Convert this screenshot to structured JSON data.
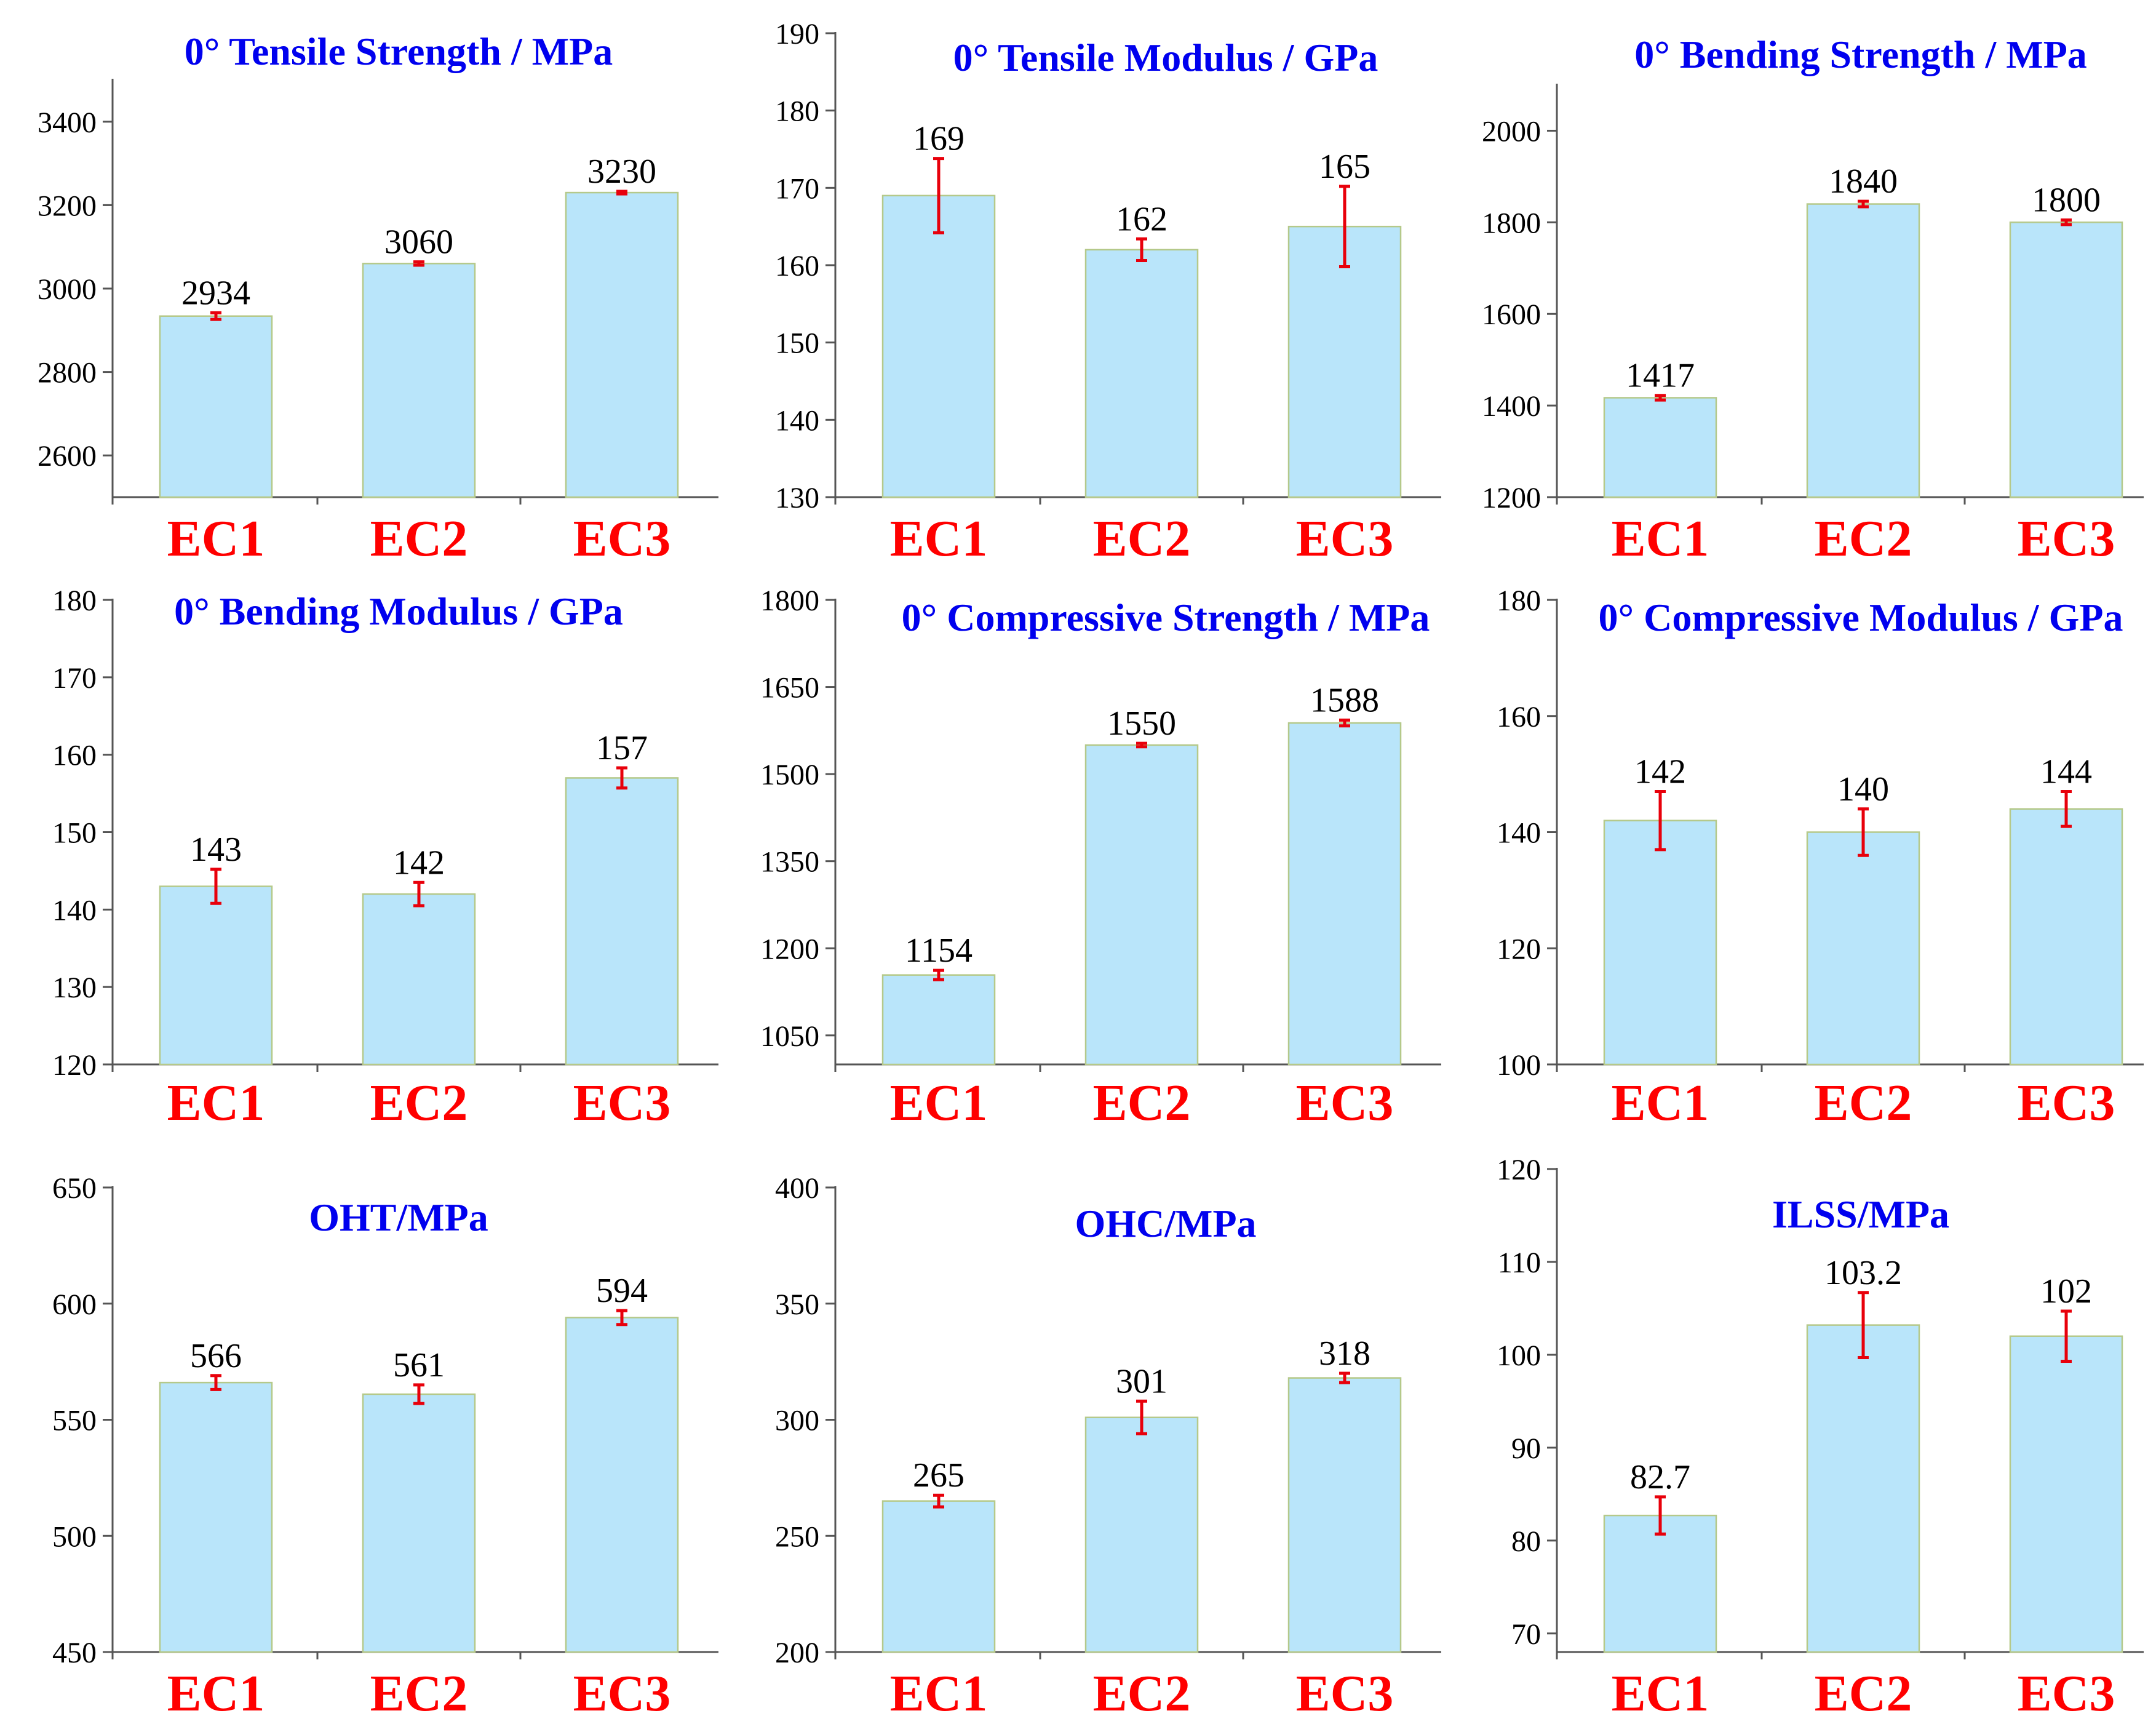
{
  "colors": {
    "bar_fill": "#b9e5fa",
    "bar_stroke": "#b5c98a",
    "error_bar": "#e8000b",
    "category_label": "#ff0000",
    "title": "#0000ee",
    "axis": "#555555"
  },
  "chart_data": [
    {
      "type": "bar",
      "title": "0° Tensile Strength / MPa",
      "categories": [
        "EC1",
        "EC2",
        "EC3"
      ],
      "values": [
        2934,
        3060,
        3230
      ],
      "value_labels": [
        "2934",
        "3060",
        "3230"
      ],
      "error": [
        8,
        4,
        3
      ],
      "ylim": [
        2500,
        3500
      ],
      "yticks": [
        2600,
        2800,
        3000,
        3200,
        3400
      ],
      "ytick_labels": [
        "2600",
        "2800",
        "3000",
        "3200",
        "3400"
      ]
    },
    {
      "type": "bar",
      "title": "0° Tensile Modulus / GPa",
      "categories": [
        "EC1",
        "EC2",
        "EC3"
      ],
      "values": [
        169,
        162,
        165
      ],
      "value_labels": [
        "169",
        "162",
        "165"
      ],
      "error": [
        4.8,
        1.4,
        5.2
      ],
      "ylim": [
        130,
        190
      ],
      "yticks": [
        130,
        140,
        150,
        160,
        170,
        180,
        190
      ],
      "ytick_labels": [
        "130",
        "140",
        "150",
        "160",
        "170",
        "180",
        "190"
      ]
    },
    {
      "type": "bar",
      "title": "0° Bending  Strength / MPa",
      "categories": [
        "EC1",
        "EC2",
        "EC3"
      ],
      "values": [
        1417,
        1840,
        1800
      ],
      "value_labels": [
        "1417",
        "1840",
        "1800"
      ],
      "error": [
        5,
        6,
        5
      ],
      "ylim": [
        1200,
        2100
      ],
      "yticks": [
        1200,
        1400,
        1600,
        1800,
        2000
      ],
      "ytick_labels": [
        "1200",
        "1400",
        "1600",
        "1800",
        "2000"
      ]
    },
    {
      "type": "bar",
      "title": "0° Bending  Modulus / GPa",
      "categories": [
        "EC1",
        "EC2",
        "EC3"
      ],
      "values": [
        143,
        142,
        157
      ],
      "value_labels": [
        "143",
        "142",
        "157"
      ],
      "error": [
        2.2,
        1.5,
        1.3
      ],
      "ylim": [
        120,
        180
      ],
      "yticks": [
        120,
        130,
        140,
        150,
        160,
        170,
        180
      ],
      "ytick_labels": [
        "120",
        "130",
        "140",
        "150",
        "160",
        "170",
        "180"
      ]
    },
    {
      "type": "bar",
      "title": "0° Compressive Strength / MPa",
      "categories": [
        "EC1",
        "EC2",
        "EC3"
      ],
      "values": [
        1154,
        1550,
        1588
      ],
      "value_labels": [
        "1154",
        "1550",
        "1588"
      ],
      "error": [
        8,
        3,
        5
      ],
      "ylim": [
        1000,
        1800
      ],
      "yticks": [
        1050,
        1200,
        1350,
        1500,
        1650,
        1800
      ],
      "ytick_labels": [
        "1050",
        "1200",
        "1350",
        "1500",
        "1650",
        "1800"
      ]
    },
    {
      "type": "bar",
      "title": "0° Compressive Modulus / GPa",
      "categories": [
        "EC1",
        "EC2",
        "EC3"
      ],
      "values": [
        142,
        140,
        144
      ],
      "value_labels": [
        "142",
        "140",
        "144"
      ],
      "error": [
        5,
        4,
        3
      ],
      "ylim": [
        100,
        180
      ],
      "yticks": [
        100,
        120,
        140,
        160,
        180
      ],
      "ytick_labels": [
        "100",
        "120",
        "140",
        "160",
        "180"
      ]
    },
    {
      "type": "bar",
      "title": "OHT/MPa",
      "categories": [
        "EC1",
        "EC2",
        "EC3"
      ],
      "values": [
        566,
        561,
        594
      ],
      "value_labels": [
        "566",
        "561",
        "594"
      ],
      "error": [
        3,
        4,
        3
      ],
      "ylim": [
        450,
        650
      ],
      "yticks": [
        450,
        500,
        550,
        600,
        650
      ],
      "ytick_labels": [
        "450",
        "500",
        "550",
        "600",
        "650"
      ]
    },
    {
      "type": "bar",
      "title": "OHC/MPa",
      "categories": [
        "EC1",
        "EC2",
        "EC3"
      ],
      "values": [
        265,
        301,
        318
      ],
      "value_labels": [
        "265",
        "301",
        "318"
      ],
      "error": [
        2.5,
        7,
        2
      ],
      "ylim": [
        200,
        400
      ],
      "yticks": [
        200,
        250,
        300,
        350,
        400
      ],
      "ytick_labels": [
        "200",
        "250",
        "300",
        "350",
        "400"
      ]
    },
    {
      "type": "bar",
      "title": "ILSS/MPa",
      "categories": [
        "EC1",
        "EC2",
        "EC3"
      ],
      "values": [
        82.7,
        103.2,
        102
      ],
      "value_labels": [
        "82.7",
        "103.2",
        "102"
      ],
      "error": [
        2,
        3.5,
        2.7
      ],
      "ylim": [
        68,
        120
      ],
      "yticks": [
        70,
        80,
        90,
        100,
        110,
        120
      ],
      "ytick_labels": [
        "70",
        "80",
        "90",
        "100",
        "110",
        "120"
      ]
    }
  ]
}
